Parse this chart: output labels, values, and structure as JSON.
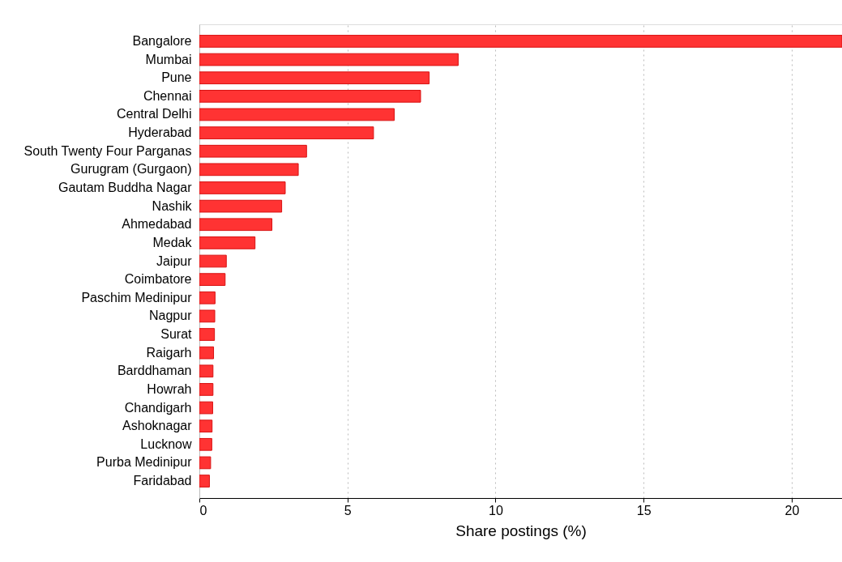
{
  "chart_data": {
    "type": "bar",
    "orientation": "horizontal",
    "xlabel": "Share postings (%)",
    "categories": [
      "Bangalore",
      "Mumbai",
      "Pune",
      "Chennai",
      "Central Delhi",
      "Hyderabad",
      "South Twenty Four Parganas",
      "Gurugram (Gurgaon)",
      "Gautam Buddha Nagar",
      "Nashik",
      "Ahmedabad",
      "Medak",
      "Jaipur",
      "Coimbatore",
      "Paschim Medinipur",
      "Nagpur",
      "Surat",
      "Raigarh",
      "Barddhaman",
      "Howrah",
      "Chandigarh",
      "Ashoknagar",
      "Lucknow",
      "Purba Medinipur",
      "Faridabad"
    ],
    "values": [
      21.7,
      8.74,
      7.76,
      7.47,
      6.58,
      5.88,
      3.62,
      3.34,
      2.9,
      2.78,
      2.45,
      1.88,
      0.91,
      0.87,
      0.53,
      0.52,
      0.51,
      0.48,
      0.46,
      0.46,
      0.45,
      0.43,
      0.42,
      0.38,
      0.34
    ],
    "color": "#ff3333",
    "xlim": [
      0,
      21.7
    ],
    "xticks": [
      0,
      5,
      10,
      15,
      20
    ],
    "grid": "x"
  }
}
